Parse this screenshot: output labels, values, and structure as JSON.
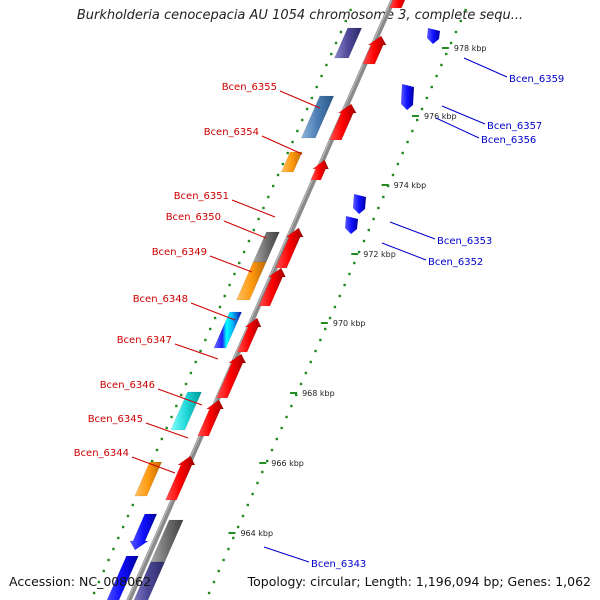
{
  "title": "Burkholderia cenocepacia AU 1054 chromosome 3, complete sequ...",
  "footer": {
    "accession": "Accession: NC_008062",
    "summary": "Topology: circular; Length: 1,196,094 bp; Genes: 1,062"
  },
  "colors": {
    "backbone": "#8a8a8a",
    "forward_label": "#cc0000",
    "reverse_label": "#0000cc",
    "ruler_tick": "#228b22"
  },
  "scale_ticks": [
    "978 kbp",
    "976 kbp",
    "974 kbp",
    "972 kbp",
    "970 kbp",
    "968 kbp",
    "966 kbp",
    "964 kbp"
  ],
  "forward_labels": [
    "Bcen_6355",
    "Bcen_6354",
    "Bcen_6351",
    "Bcen_6350",
    "Bcen_6349",
    "Bcen_6348",
    "Bcen_6347",
    "Bcen_6346",
    "Bcen_6345",
    "Bcen_6344"
  ],
  "reverse_labels": [
    "Bcen_6359",
    "Bcen_6357",
    "Bcen_6356",
    "Bcen_6353",
    "Bcen_6352",
    "Bcen_6343"
  ]
}
